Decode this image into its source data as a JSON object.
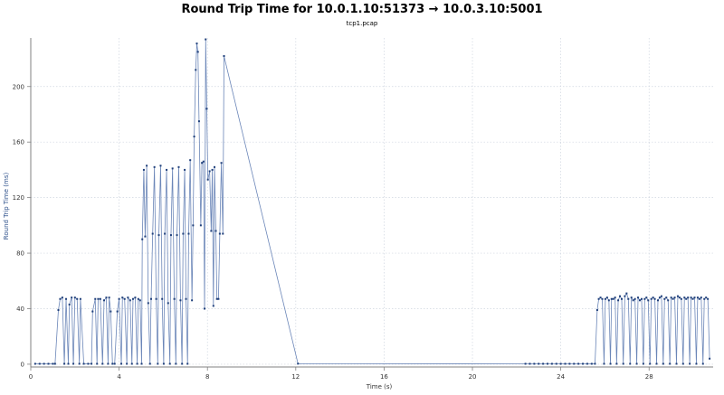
{
  "window": {
    "title": "Round Trip Time for 10.0.1.10:51373 → 10.0.3.10:5001",
    "subtitle": "tcp1.pcap"
  },
  "colors": {
    "series": "#6b86b8",
    "marker": "#1f3f7a",
    "grid": "#cfd6e0",
    "axis": "#808080"
  },
  "chart_data": {
    "type": "line",
    "title": "Round Trip Time for 10.0.1.10:51373 → 10.0.3.10:5001",
    "subtitle": "tcp1.pcap",
    "xlabel": "Time (s)",
    "ylabel": "Round Trip Time (ms)",
    "xlim": [
      0,
      30.9
    ],
    "ylim": [
      -2,
      235
    ],
    "xticks": [
      0,
      4,
      8,
      12,
      16,
      20,
      24,
      28
    ],
    "yticks": [
      0,
      40,
      80,
      120,
      160,
      200
    ],
    "grid": true,
    "legend": "none",
    "series": [
      {
        "name": "Round Trip Time",
        "points": [
          [
            0.2,
            0.3
          ],
          [
            0.4,
            0.3
          ],
          [
            0.6,
            0.3
          ],
          [
            0.8,
            0.3
          ],
          [
            1.0,
            0.3
          ],
          [
            1.1,
            0.3
          ],
          [
            1.25,
            39
          ],
          [
            1.33,
            47
          ],
          [
            1.43,
            48
          ],
          [
            1.52,
            0.3
          ],
          [
            1.6,
            47
          ],
          [
            1.7,
            0.3
          ],
          [
            1.75,
            43
          ],
          [
            1.85,
            48
          ],
          [
            1.93,
            0.3
          ],
          [
            2.0,
            48
          ],
          [
            2.1,
            47
          ],
          [
            2.2,
            0.3
          ],
          [
            2.25,
            47
          ],
          [
            2.4,
            0.3
          ],
          [
            2.6,
            0.3
          ],
          [
            2.75,
            0.3
          ],
          [
            2.8,
            38
          ],
          [
            2.92,
            47
          ],
          [
            3.0,
            0.3
          ],
          [
            3.05,
            47
          ],
          [
            3.15,
            47
          ],
          [
            3.25,
            0.3
          ],
          [
            3.32,
            46
          ],
          [
            3.42,
            48
          ],
          [
            3.5,
            0.3
          ],
          [
            3.55,
            48
          ],
          [
            3.62,
            38
          ],
          [
            3.7,
            0.3
          ],
          [
            3.8,
            0.3
          ],
          [
            3.92,
            38
          ],
          [
            4.0,
            47
          ],
          [
            4.1,
            0.3
          ],
          [
            4.15,
            48
          ],
          [
            4.25,
            47
          ],
          [
            4.35,
            0.3
          ],
          [
            4.4,
            48
          ],
          [
            4.5,
            46
          ],
          [
            4.58,
            0.3
          ],
          [
            4.63,
            47
          ],
          [
            4.73,
            48
          ],
          [
            4.82,
            0.3
          ],
          [
            4.87,
            47
          ],
          [
            4.95,
            46
          ],
          [
            5.02,
            0.3
          ],
          [
            5.05,
            90
          ],
          [
            5.12,
            140
          ],
          [
            5.18,
            92
          ],
          [
            5.25,
            143
          ],
          [
            5.32,
            44
          ],
          [
            5.4,
            0.3
          ],
          [
            5.45,
            47
          ],
          [
            5.52,
            94
          ],
          [
            5.6,
            142
          ],
          [
            5.68,
            47
          ],
          [
            5.75,
            0.3
          ],
          [
            5.8,
            93
          ],
          [
            5.88,
            143
          ],
          [
            5.95,
            47
          ],
          [
            6.02,
            0.3
          ],
          [
            6.07,
            94
          ],
          [
            6.15,
            140
          ],
          [
            6.22,
            44
          ],
          [
            6.3,
            0.3
          ],
          [
            6.35,
            93
          ],
          [
            6.42,
            141
          ],
          [
            6.5,
            47
          ],
          [
            6.57,
            0.3
          ],
          [
            6.62,
            93
          ],
          [
            6.7,
            142
          ],
          [
            6.78,
            46
          ],
          [
            6.85,
            0.3
          ],
          [
            6.9,
            94
          ],
          [
            6.97,
            140
          ],
          [
            7.03,
            47
          ],
          [
            7.1,
            0.3
          ],
          [
            7.15,
            94
          ],
          [
            7.22,
            147
          ],
          [
            7.3,
            46
          ],
          [
            7.35,
            100
          ],
          [
            7.4,
            164
          ],
          [
            7.47,
            212
          ],
          [
            7.52,
            231
          ],
          [
            7.57,
            225
          ],
          [
            7.62,
            175
          ],
          [
            7.7,
            100
          ],
          [
            7.75,
            145
          ],
          [
            7.82,
            146
          ],
          [
            7.87,
            40
          ],
          [
            7.92,
            234
          ],
          [
            7.97,
            184
          ],
          [
            8.02,
            133
          ],
          [
            8.1,
            139
          ],
          [
            8.17,
            96
          ],
          [
            8.22,
            140
          ],
          [
            8.27,
            42
          ],
          [
            8.32,
            142
          ],
          [
            8.38,
            96
          ],
          [
            8.43,
            47
          ],
          [
            8.5,
            47
          ],
          [
            8.56,
            94
          ],
          [
            8.63,
            145
          ],
          [
            8.7,
            94
          ],
          [
            8.75,
            222
          ],
          [
            12.1,
            0.4
          ],
          [
            22.4,
            0.3
          ],
          [
            22.6,
            0.3
          ],
          [
            22.8,
            0.3
          ],
          [
            23.0,
            0.3
          ],
          [
            23.2,
            0.3
          ],
          [
            23.4,
            0.3
          ],
          [
            23.6,
            0.3
          ],
          [
            23.8,
            0.3
          ],
          [
            24.0,
            0.3
          ],
          [
            24.2,
            0.3
          ],
          [
            24.4,
            0.3
          ],
          [
            24.6,
            0.3
          ],
          [
            24.8,
            0.3
          ],
          [
            25.0,
            0.3
          ],
          [
            25.2,
            0.3
          ],
          [
            25.4,
            0.3
          ],
          [
            25.55,
            0.3
          ],
          [
            25.65,
            39
          ],
          [
            25.72,
            47
          ],
          [
            25.8,
            48
          ],
          [
            25.88,
            47
          ],
          [
            25.96,
            0.3
          ],
          [
            26.02,
            47
          ],
          [
            26.1,
            48
          ],
          [
            26.18,
            46
          ],
          [
            26.25,
            0.3
          ],
          [
            26.3,
            47
          ],
          [
            26.38,
            47
          ],
          [
            26.46,
            48
          ],
          [
            26.53,
            0.3
          ],
          [
            26.6,
            46
          ],
          [
            26.68,
            49
          ],
          [
            26.76,
            47
          ],
          [
            26.83,
            0.3
          ],
          [
            26.9,
            49
          ],
          [
            26.98,
            51
          ],
          [
            27.06,
            47
          ],
          [
            27.14,
            0.3
          ],
          [
            27.2,
            48
          ],
          [
            27.28,
            46
          ],
          [
            27.36,
            47
          ],
          [
            27.44,
            0.3
          ],
          [
            27.5,
            48
          ],
          [
            27.58,
            46
          ],
          [
            27.66,
            47
          ],
          [
            27.74,
            0.3
          ],
          [
            27.8,
            47
          ],
          [
            27.88,
            48
          ],
          [
            27.96,
            46
          ],
          [
            28.04,
            0.3
          ],
          [
            28.1,
            47
          ],
          [
            28.18,
            48
          ],
          [
            28.26,
            47
          ],
          [
            28.34,
            0.3
          ],
          [
            28.4,
            46
          ],
          [
            28.48,
            48
          ],
          [
            28.56,
            49
          ],
          [
            28.64,
            0.3
          ],
          [
            28.7,
            47
          ],
          [
            28.78,
            48
          ],
          [
            28.86,
            46
          ],
          [
            28.94,
            0.3
          ],
          [
            29.0,
            48
          ],
          [
            29.08,
            47
          ],
          [
            29.16,
            48
          ],
          [
            29.24,
            0.3
          ],
          [
            29.3,
            49
          ],
          [
            29.38,
            48
          ],
          [
            29.46,
            47
          ],
          [
            29.54,
            0.3
          ],
          [
            29.6,
            48
          ],
          [
            29.68,
            47
          ],
          [
            29.76,
            48
          ],
          [
            29.84,
            0.3
          ],
          [
            29.9,
            48
          ],
          [
            29.98,
            47
          ],
          [
            30.06,
            48
          ],
          [
            30.14,
            0.3
          ],
          [
            30.2,
            48
          ],
          [
            30.28,
            47
          ],
          [
            30.36,
            48
          ],
          [
            30.44,
            0.3
          ],
          [
            30.5,
            47
          ],
          [
            30.58,
            48
          ],
          [
            30.66,
            47
          ],
          [
            30.74,
            4
          ]
        ]
      }
    ]
  }
}
